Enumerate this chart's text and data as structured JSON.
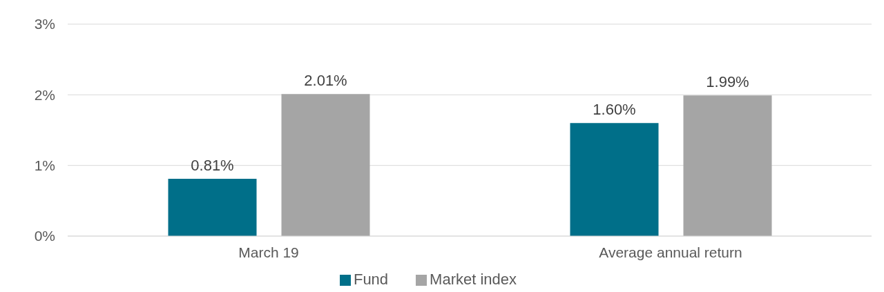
{
  "chart_data": {
    "type": "bar",
    "categories": [
      "March 19",
      "Average annual return"
    ],
    "series": [
      {
        "name": "Fund",
        "color": "#006f89",
        "values": [
          0.81,
          1.6
        ],
        "value_labels": [
          "0.81%",
          "1.60%"
        ]
      },
      {
        "name": "Market index",
        "color": "#a5a5a5",
        "values": [
          2.01,
          1.99
        ],
        "value_labels": [
          "2.01%",
          "1.99%"
        ]
      }
    ],
    "ylim": [
      0,
      3
    ],
    "yticks": [
      {
        "value": 0,
        "label": "0%"
      },
      {
        "value": 1,
        "label": "1%"
      },
      {
        "value": 2,
        "label": "2%"
      },
      {
        "value": 3,
        "label": "3%"
      }
    ],
    "grid": "y",
    "legend": "bottom"
  }
}
